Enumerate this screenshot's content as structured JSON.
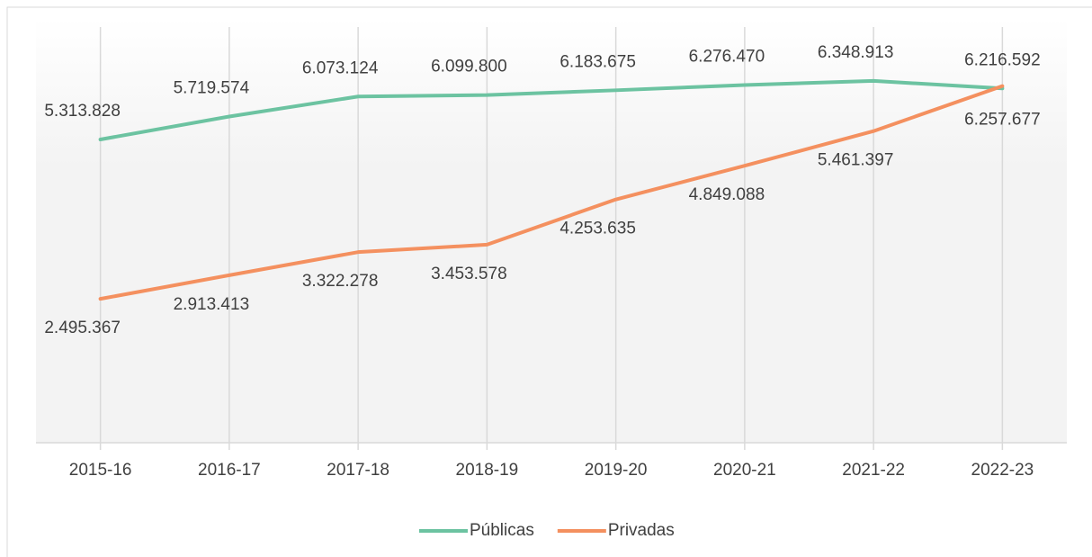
{
  "chart_data": {
    "type": "line",
    "categories": [
      "2015-16",
      "2016-17",
      "2017-18",
      "2018-19",
      "2019-20",
      "2020-21",
      "2021-22",
      "2022-23"
    ],
    "series": [
      {
        "name": "Públicas",
        "color": "#6cc3a1",
        "values": [
          5313828,
          5719574,
          6073124,
          6099800,
          6183675,
          6276470,
          6348913,
          6216592
        ],
        "value_labels": [
          "5.313.828",
          "5.719.574",
          "6.073.124",
          "6.099.800",
          "6.183.675",
          "6.276.470",
          "6.348.913",
          "6.216.592"
        ]
      },
      {
        "name": "Privadas",
        "color": "#f4905f",
        "values": [
          2495367,
          2913413,
          3322278,
          3453578,
          4253635,
          4849088,
          5461397,
          6257677
        ],
        "value_labels": [
          "2.495.367",
          "2.913.413",
          "3.322.278",
          "3.453.578",
          "4.253.635",
          "4.849.088",
          "5.461.397",
          "6.257.677"
        ]
      }
    ],
    "ylim": [
      0,
      7000000
    ],
    "legend": "bottom"
  }
}
